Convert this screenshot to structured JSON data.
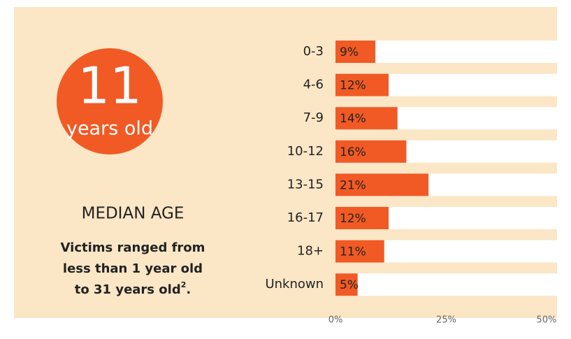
{
  "summary": {
    "number": "11",
    "unit": "years old",
    "heading": "MEDIAN AGE",
    "lines": [
      "Victims ranged from",
      "less than 1 year old",
      "to 31 years old"
    ],
    "footnote": "2",
    "end": "."
  },
  "chart_data": {
    "type": "barh",
    "categories": [
      "0-3",
      "4-6",
      "7-9",
      "10-12",
      "13-15",
      "16-17",
      "18+",
      "Unknown"
    ],
    "values": [
      9,
      12,
      14,
      16,
      21,
      12,
      11,
      5
    ],
    "value_labels": [
      "9%",
      "12%",
      "14%",
      "16%",
      "21%",
      "12%",
      "11%",
      "5%"
    ],
    "color": "#f15a24",
    "xlim": [
      0,
      50
    ],
    "xticks": [
      {
        "value": 0,
        "label": "0%"
      },
      {
        "value": 25,
        "label": "25%"
      },
      {
        "value": 50,
        "label": "50%"
      }
    ]
  }
}
